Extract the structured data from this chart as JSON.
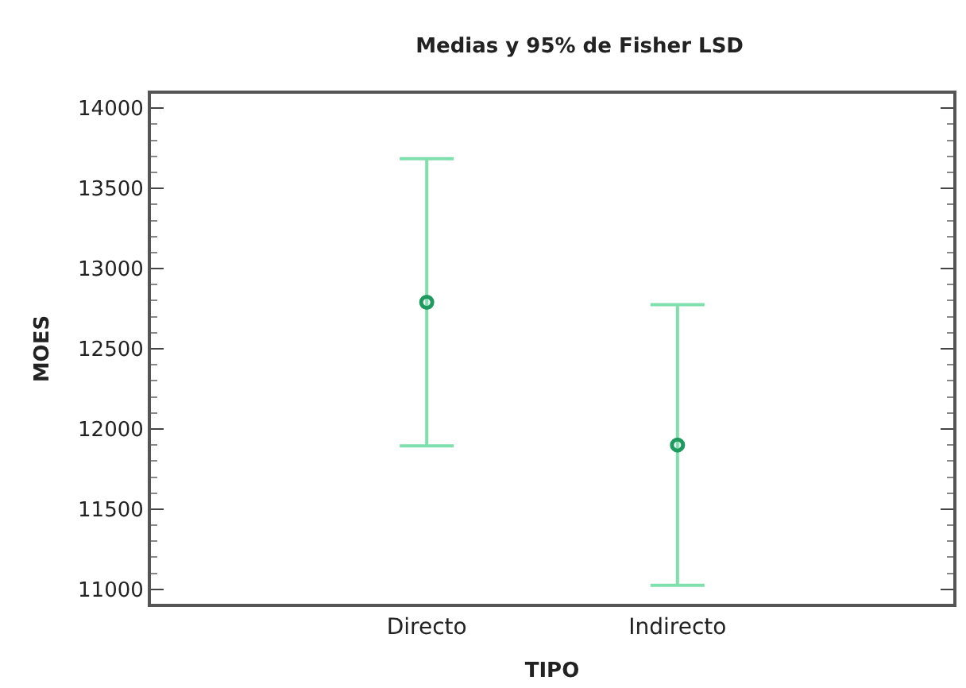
{
  "chart_data": {
    "type": "scatter",
    "title": "Medias y 95% de Fisher LSD",
    "xlabel": "TIPO",
    "ylabel": "MOES",
    "categories": [
      "Directo",
      "Indirecto"
    ],
    "series": [
      {
        "color": "#1f9a5e",
        "values": [
          12790,
          11900
        ],
        "errors": [
          895,
          875
        ]
      }
    ],
    "ylim": [
      10910,
      14090
    ],
    "yticks": [
      11000,
      11500,
      12000,
      12500,
      13000,
      13500,
      14000
    ],
    "marker": "circle"
  }
}
